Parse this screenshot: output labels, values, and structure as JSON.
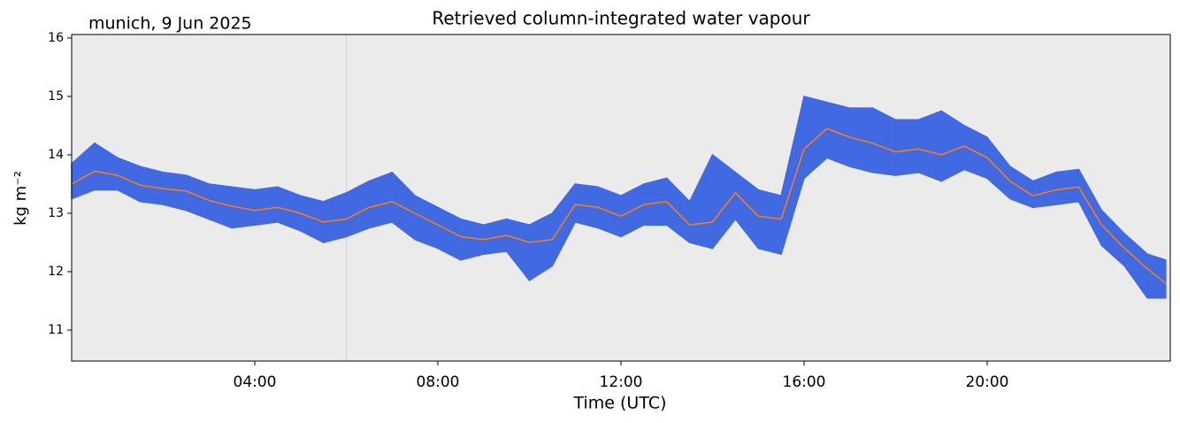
{
  "chart_data": {
    "type": "line",
    "title": "Retrieved column-integrated water vapour",
    "annotation": "munich, 9 Jun 2025",
    "x_label": "Time (UTC)",
    "y_label": "kg m⁻²",
    "x": [
      0,
      0.5,
      1,
      1.5,
      2,
      2.5,
      3,
      3.5,
      4,
      4.5,
      5,
      5.5,
      6,
      6.5,
      7,
      7.5,
      8,
      8.5,
      9,
      9.5,
      10,
      10.5,
      11,
      11.5,
      12,
      12.5,
      13,
      13.5,
      14,
      14.5,
      15,
      15.5,
      16,
      16.5,
      17,
      17.5,
      18,
      18.5,
      19,
      19.5,
      20,
      20.5,
      21,
      21.5,
      22,
      22.5,
      23,
      23.5,
      23.9
    ],
    "series": [
      {
        "color": "#4169e1",
        "values": [
          13.25,
          13.4,
          13.4,
          13.2,
          13.15,
          13.05,
          12.9,
          12.75,
          12.8,
          12.85,
          12.7,
          12.5,
          12.6,
          12.75,
          12.85,
          12.55,
          12.4,
          12.2,
          12.3,
          12.35,
          11.85,
          12.1,
          12.85,
          12.75,
          12.6,
          12.8,
          12.8,
          12.5,
          12.4,
          12.9,
          12.4,
          12.3,
          13.6,
          13.95,
          13.8,
          13.7,
          13.65,
          13.7,
          13.55,
          13.75,
          13.6,
          13.25,
          13.1,
          13.15,
          13.2,
          12.45,
          12.1,
          11.55,
          11.55
        ]
      },
      {
        "color": "#4169e1",
        "values": [
          13.85,
          14.2,
          13.95,
          13.8,
          13.7,
          13.65,
          13.5,
          13.45,
          13.4,
          13.45,
          13.3,
          13.2,
          13.35,
          13.55,
          13.7,
          13.3,
          13.1,
          12.9,
          12.8,
          12.9,
          12.8,
          13.0,
          13.5,
          13.45,
          13.3,
          13.5,
          13.6,
          13.2,
          14.0,
          13.7,
          13.4,
          13.3,
          15.0,
          14.9,
          14.8,
          14.8,
          14.6,
          14.6,
          14.75,
          14.5,
          14.3,
          13.8,
          13.55,
          13.7,
          13.75,
          13.05,
          12.65,
          12.3,
          12.2
        ]
      },
      {
        "color": "#ff7f0e",
        "values": [
          13.5,
          13.72,
          13.65,
          13.48,
          13.42,
          13.38,
          13.22,
          13.12,
          13.05,
          13.1,
          13.0,
          12.85,
          12.9,
          13.1,
          13.2,
          13.0,
          12.8,
          12.6,
          12.55,
          12.62,
          12.5,
          12.55,
          13.15,
          13.1,
          12.95,
          13.15,
          13.2,
          12.8,
          12.85,
          13.35,
          12.95,
          12.9,
          14.1,
          14.45,
          14.3,
          14.2,
          14.05,
          14.1,
          14.0,
          14.15,
          13.95,
          13.55,
          13.3,
          13.4,
          13.45,
          12.8,
          12.4,
          12.05,
          11.8
        ]
      }
    ],
    "vline": 6,
    "xlim": [
      0,
      24
    ],
    "xticks": [
      {
        "value": 4,
        "label": "04:00"
      },
      {
        "value": 8,
        "label": "08:00"
      },
      {
        "value": 12,
        "label": "12:00"
      },
      {
        "value": 16,
        "label": "16:00"
      },
      {
        "value": 20,
        "label": "20:00"
      }
    ],
    "ylim": [
      10.47,
      16.06
    ],
    "yticks": [
      11,
      12,
      13,
      14,
      15,
      16
    ],
    "background": "#ebebeb"
  }
}
